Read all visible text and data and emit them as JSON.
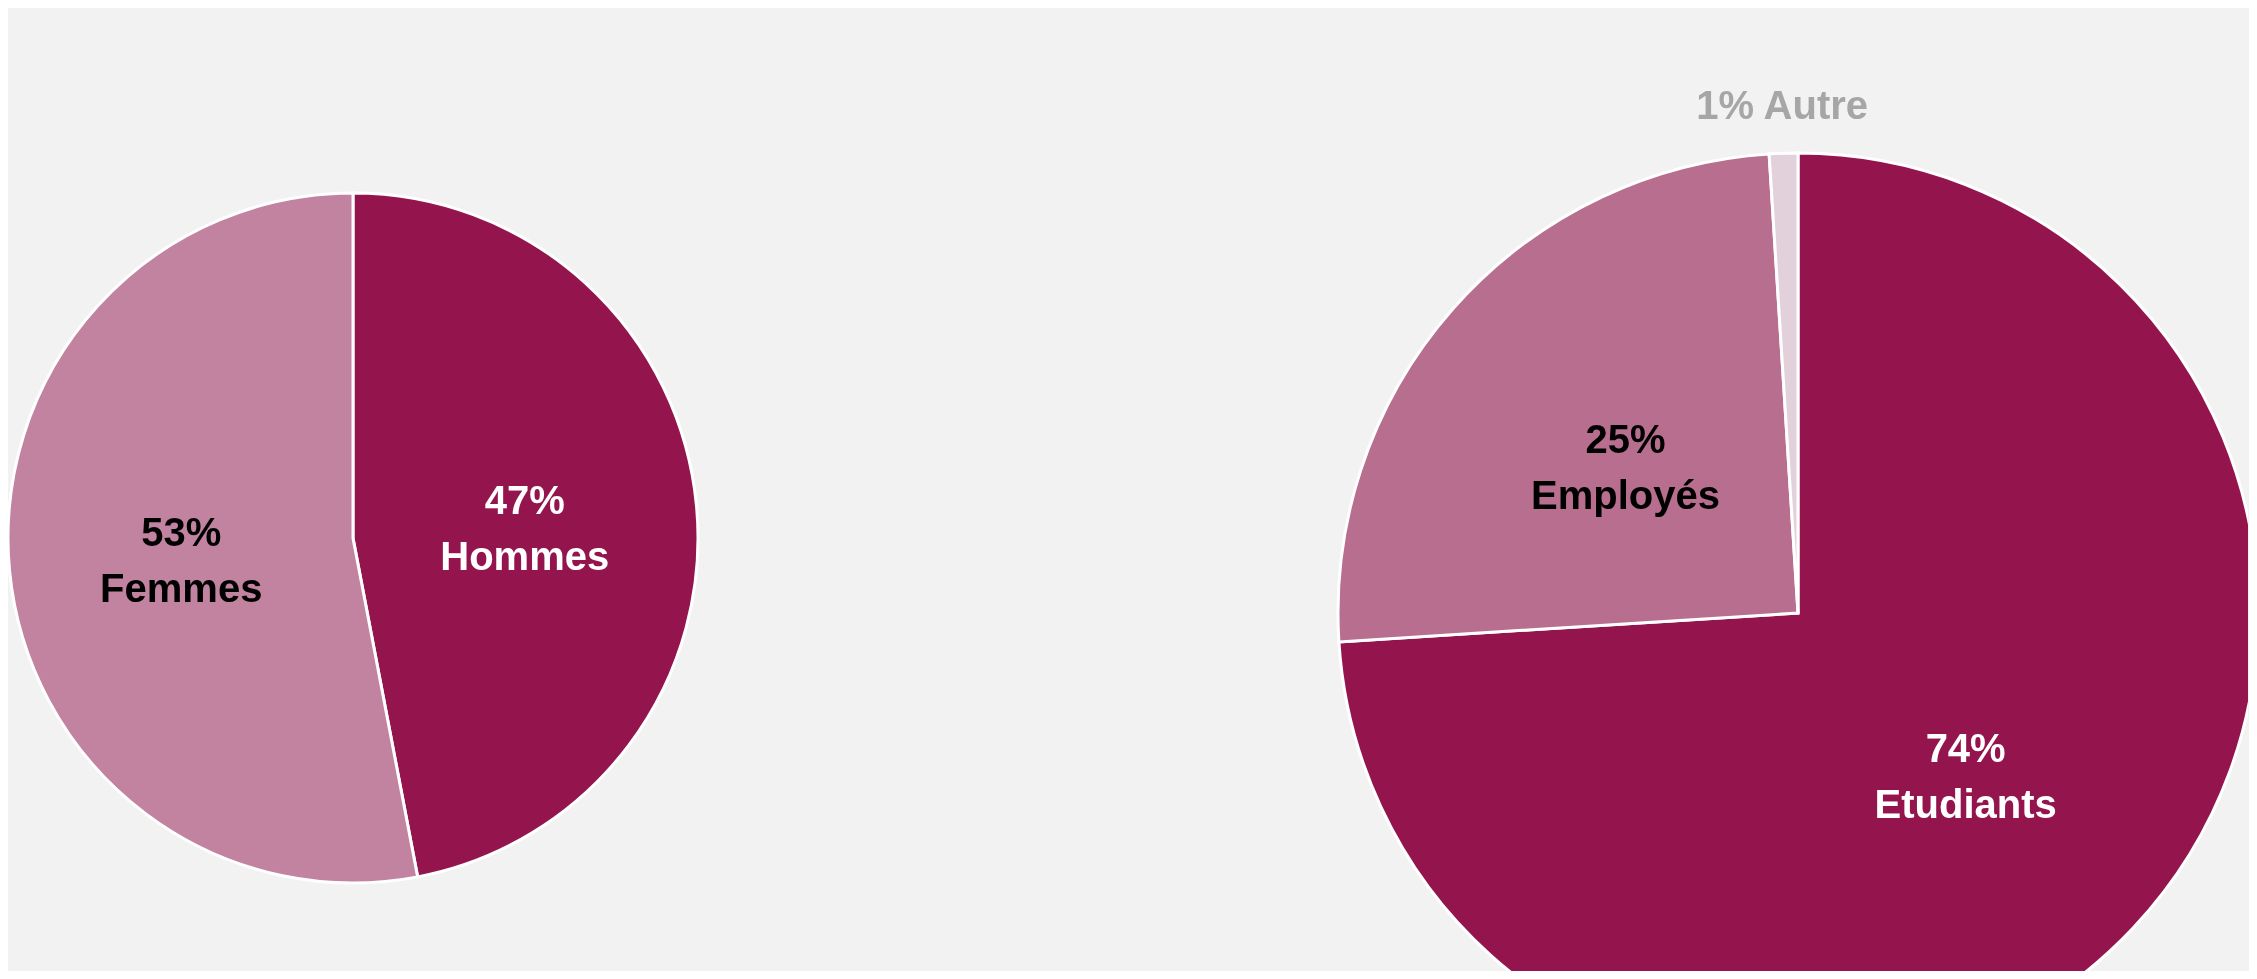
{
  "chart_data": [
    {
      "type": "pie",
      "categories": [
        "Hommes",
        "Femmes"
      ],
      "values": [
        47,
        53
      ],
      "value_labels": [
        "47%",
        "53%"
      ],
      "colors": [
        "#94154d",
        "#c183a0"
      ]
    },
    {
      "type": "pie",
      "categories": [
        "Etudiants",
        "Employés",
        "Autre"
      ],
      "values": [
        74,
        25,
        1
      ],
      "value_labels": [
        "74%",
        "25%",
        "1%"
      ],
      "colors": [
        "#94154d",
        "#b86e8e",
        "#e2d1da"
      ]
    }
  ]
}
